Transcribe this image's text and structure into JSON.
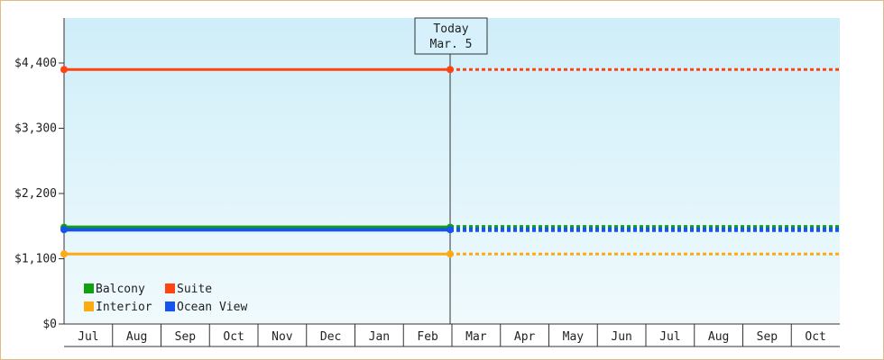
{
  "chart_data": {
    "type": "line",
    "x_labels": [
      "Jul",
      "Aug",
      "Sep",
      "Oct",
      "Nov",
      "Dec",
      "Jan",
      "Feb",
      "Mar",
      "Apr",
      "May",
      "Jun",
      "Jul",
      "Aug",
      "Sep",
      "Oct"
    ],
    "y_ticks": [
      "$0",
      "$1,100",
      "$2,200",
      "$3,300",
      "$4,400"
    ],
    "y_tick_values": [
      0,
      1100,
      2200,
      3300,
      4400
    ],
    "ylim": [
      0,
      4400
    ],
    "today": {
      "line1": "Today",
      "line2": "Mar. 5",
      "month_index": 8
    },
    "series": [
      {
        "name": "Balcony",
        "color": "#11a011",
        "value": 1630,
        "width": 4,
        "dash_width": 5
      },
      {
        "name": "Ocean View",
        "color": "#1555ee",
        "value": 1590,
        "width": 4,
        "dash_width": 5
      },
      {
        "name": "Suite",
        "color": "#ff4411",
        "value": 4290,
        "width": 3,
        "dash_width": 3
      },
      {
        "name": "Interior",
        "color": "#ffaa11",
        "value": 1180,
        "width": 3,
        "dash_width": 3
      }
    ],
    "legend": {
      "placement": "bottom-left",
      "items": [
        {
          "name": "Balcony",
          "color": "#11a011"
        },
        {
          "name": "Suite",
          "color": "#ff4411"
        },
        {
          "name": "Interior",
          "color": "#ffaa11"
        },
        {
          "name": "Ocean View",
          "color": "#1555ee"
        }
      ]
    },
    "grid": false
  }
}
